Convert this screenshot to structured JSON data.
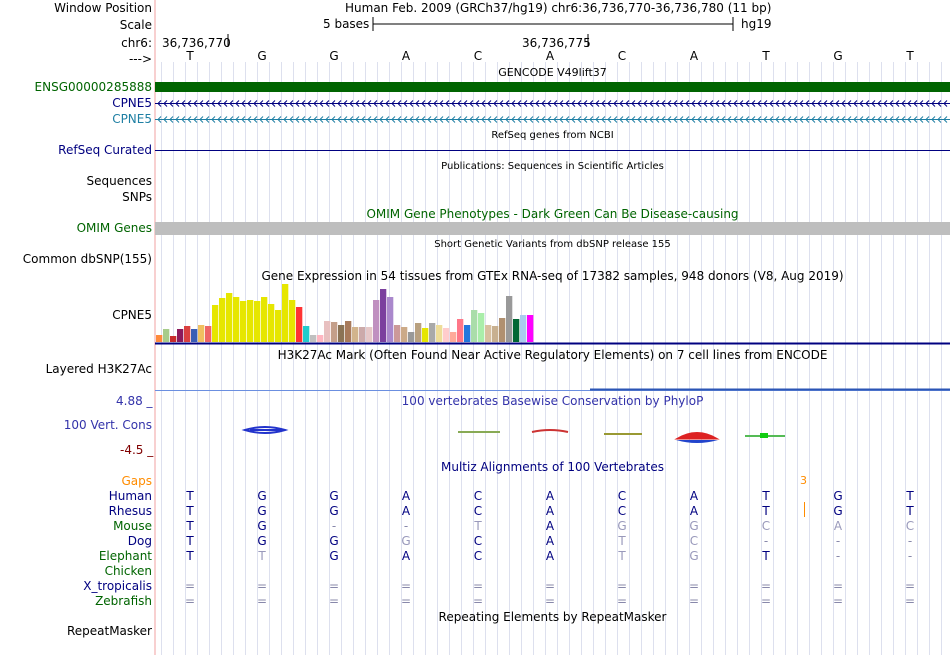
{
  "position": {
    "label_window": "Window Position",
    "window_text": "Human Feb. 2009 (GRCh37/hg19)   chr6:36,736,770-36,736,780 (11 bp)",
    "label_scale": "Scale",
    "scale_text": "5 bases",
    "scale_db": "hg19",
    "label_chrom": "chr6:",
    "coord1": "36,736,770",
    "coord2": "36,736,775",
    "label_arrow": "--->"
  },
  "bases": [
    "T",
    "G",
    "G",
    "A",
    "C",
    "A",
    "C",
    "A",
    "T",
    "G",
    "T"
  ],
  "tracks": {
    "gencode_title": "GENCODE V49lift37",
    "ensg_label": "ENSG00000285888",
    "cpne5_label_1": "CPNE5",
    "cpne5_label_2": "CPNE5",
    "refseq_title": "RefSeq genes from NCBI",
    "refseq_label": "RefSeq Curated",
    "pubs_title": "Publications: Sequences in Scientific Articles",
    "sequences_label": "Sequences",
    "snps_label": "SNPs",
    "omim_title": "OMIM Gene Phenotypes - Dark Green Can Be Disease-causing",
    "omim_label": "OMIM Genes",
    "dbsnp_title": "Short Genetic Variants from dbSNP release 155",
    "dbsnp_label": "Common dbSNP(155)",
    "gtex_title": "Gene Expression in 54 tissues from GTEx RNA-seq of 17382 samples, 948 donors (V8, Aug 2019)",
    "gtex_label": "CPNE5",
    "h3k27_title": "H3K27Ac Mark (Often Found Near Active Regulatory Elements) on 7 cell lines from ENCODE",
    "h3k27_label": "Layered H3K27Ac",
    "cons_max": "4.88 _",
    "cons_title": "100 vertebrates Basewise Conservation by PhyloP",
    "cons_label": "100 Vert. Cons",
    "cons_min": "-4.5 _",
    "multiz_title": "Multiz Alignments of 100 Vertebrates",
    "gaps_label": "Gaps",
    "gap_count": "3",
    "repeat_title": "Repeating Elements by RepeatMasker",
    "repeat_label": "RepeatMasker"
  },
  "species": [
    {
      "name": "Human",
      "color": "#000080",
      "bases": [
        "T",
        "G",
        "G",
        "A",
        "C",
        "A",
        "C",
        "A",
        "T",
        "G",
        "T"
      ]
    },
    {
      "name": "Rhesus",
      "color": "#000080",
      "bases": [
        "T",
        "G",
        "G",
        "A",
        "C",
        "A",
        "C",
        "A",
        "T",
        "G",
        "T"
      ]
    },
    {
      "name": "Mouse",
      "color": "#006400",
      "bases": [
        "T",
        "G",
        "-",
        "-",
        "T",
        "A",
        "G",
        "G",
        "C",
        "A",
        "C"
      ]
    },
    {
      "name": "Dog",
      "color": "#000080",
      "bases": [
        "T",
        "G",
        "G",
        "G",
        "C",
        "A",
        "T",
        "C",
        "-",
        "-",
        "-"
      ]
    },
    {
      "name": "Elephant",
      "color": "#006400",
      "bases": [
        "T",
        "T",
        "G",
        "A",
        "C",
        "A",
        "T",
        "G",
        "T",
        "-",
        "-"
      ]
    },
    {
      "name": "Chicken",
      "color": "#006400",
      "bases": [
        "",
        "",
        "",
        "",
        "",
        "",
        "",
        "",
        "",
        "",
        ""
      ]
    },
    {
      "name": "X_tropicalis",
      "color": "#000080",
      "bases": [
        "=",
        "=",
        "=",
        "=",
        "=",
        "=",
        "=",
        "=",
        "=",
        "=",
        "="
      ]
    },
    {
      "name": "Zebrafish",
      "color": "#006400",
      "bases": [
        "=",
        "=",
        "=",
        "=",
        "=",
        "=",
        "=",
        "=",
        "=",
        "=",
        "="
      ]
    }
  ],
  "gtex_values": [
    0.12,
    0.22,
    0.1,
    0.22,
    0.28,
    0.22,
    0.3,
    0.28,
    0.63,
    0.75,
    0.85,
    0.78,
    0.7,
    0.72,
    0.7,
    0.78,
    0.65,
    0.56,
    1.0,
    0.72,
    0.6,
    0.28,
    0.12,
    0.12,
    0.36,
    0.34,
    0.3,
    0.36,
    0.26,
    0.26,
    0.26,
    0.72,
    0.92,
    0.78,
    0.3,
    0.26,
    0.18,
    0.32,
    0.24,
    0.32,
    0.3,
    0.24,
    0.18,
    0.4,
    0.3,
    0.56,
    0.5,
    0.3,
    0.28,
    0.42,
    0.8,
    0.4,
    0.46,
    0.46
  ],
  "gtex_colors": [
    "#ff8a3c",
    "#a7cc8a",
    "#c82c2c",
    "#8b1a5c",
    "#d94040",
    "#3a5db5",
    "#f0c060",
    "#ee6666",
    "#e6e600",
    "#e6e600",
    "#e6e600",
    "#e6e600",
    "#e6e600",
    "#e6e600",
    "#e6e600",
    "#e6e600",
    "#e6e600",
    "#e6e600",
    "#e6e600",
    "#e6e600",
    "#ff3333",
    "#22cccc",
    "#c0c0c0",
    "#ffb6c1",
    "#e8c0c0",
    "#c49f8a",
    "#8b7355",
    "#a87a5b",
    "#d2b48c",
    "#ccaaaa",
    "#e6c8c8",
    "#c090c0",
    "#7b3f9e",
    "#aa88cc",
    "#cc9999",
    "#ccaa88",
    "#999999",
    "#b8a080",
    "#e6e600",
    "#a9a9a9",
    "#eedd99",
    "#ffcccc",
    "#ffaa99",
    "#ff7788",
    "#2277dd",
    "#aaddaa",
    "#aaeeaa",
    "#d8c0a0",
    "#c8b090",
    "#b09070",
    "#999999",
    "#006633",
    "#aaccee",
    "#ff00ff"
  ],
  "colors": {
    "label_blue": "#000080",
    "label_green": "#006400",
    "gencode_green": "#006400",
    "cpne5_cyan": "#1e7fa3",
    "omim_gray": "#bebebe",
    "cons_blue": "#3333aa",
    "cons_minus": "#800000",
    "gaps_orange": "#ff8c00",
    "h3k27_blue": "#4f7fd0"
  }
}
